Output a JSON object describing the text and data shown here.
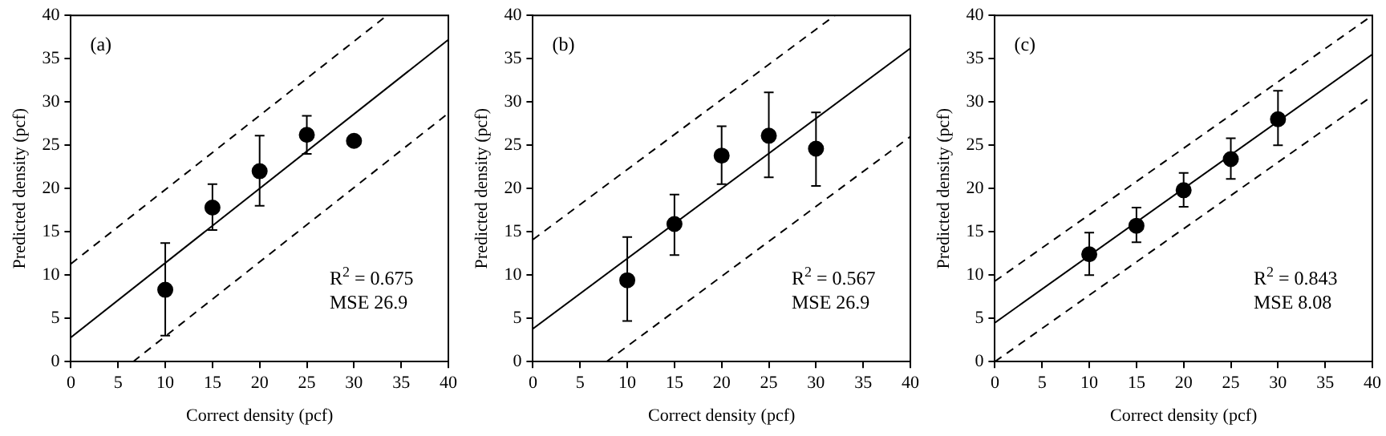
{
  "chart_data": [
    {
      "type": "scatter",
      "xlabel": "Correct density (pcf)",
      "ylabel": "Predicted density (pcf)",
      "xlim": [
        0,
        40
      ],
      "ylim": [
        0,
        40
      ],
      "xticks": [
        0,
        5,
        10,
        15,
        20,
        25,
        30,
        35,
        40
      ],
      "yticks": [
        0,
        5,
        10,
        15,
        20,
        25,
        30,
        35,
        40
      ],
      "grid": false,
      "legend": false,
      "annotations": [
        "(a)",
        "R$^{2}$ = 0.675",
        "MSE 26.9"
      ],
      "series": [
        {
          "type": "scatter",
          "color": "#000000",
          "marker": "circle",
          "x": [
            10,
            15,
            20,
            25,
            30
          ],
          "values": [
            8.3,
            17.8,
            22,
            26.2,
            25.5
          ],
          "errors": [
            [
              3,
              13.7
            ],
            [
              15.2,
              20.5
            ],
            [
              18,
              26.1
            ],
            [
              24,
              28.4
            ],
            null
          ]
        },
        {
          "type": "line",
          "color": "#000000",
          "line_style": "solid",
          "marker": "none",
          "x": [
            0,
            40
          ],
          "values": [
            2.8,
            37.2
          ]
        },
        {
          "type": "line",
          "color": "#000000",
          "line_style": "dashed",
          "marker": "none",
          "x": [
            0,
            33.5
          ],
          "values": [
            11.3,
            40
          ]
        },
        {
          "type": "line",
          "color": "#000000",
          "line_style": "dashed",
          "marker": "none",
          "x": [
            6.6,
            40
          ],
          "values": [
            0,
            28.7
          ]
        }
      ]
    },
    {
      "type": "scatter",
      "xlabel": "Correct density (pcf)",
      "ylabel": "Predicted density (pcf)",
      "xlim": [
        0,
        40
      ],
      "ylim": [
        0,
        40
      ],
      "xticks": [
        0,
        5,
        10,
        15,
        20,
        25,
        30,
        35,
        40
      ],
      "yticks": [
        0,
        5,
        10,
        15,
        20,
        25,
        30,
        35,
        40
      ],
      "grid": false,
      "legend": false,
      "annotations": [
        "(b)",
        "R$^{2}$ = 0.567",
        "MSE 26.9"
      ],
      "series": [
        {
          "type": "scatter",
          "color": "#000000",
          "marker": "circle",
          "x": [
            10,
            15,
            20,
            25,
            30
          ],
          "values": [
            9.4,
            15.9,
            23.8,
            26.1,
            24.6
          ],
          "errors": [
            [
              4.7,
              14.4
            ],
            [
              12.3,
              19.3
            ],
            [
              20.5,
              27.2
            ],
            [
              21.3,
              31.1
            ],
            [
              20.3,
              28.8
            ]
          ]
        },
        {
          "type": "line",
          "color": "#000000",
          "line_style": "solid",
          "marker": "none",
          "x": [
            0,
            40
          ],
          "values": [
            3.8,
            36.2
          ]
        },
        {
          "type": "line",
          "color": "#000000",
          "line_style": "dashed",
          "marker": "none",
          "x": [
            0,
            32
          ],
          "values": [
            14.1,
            40
          ]
        },
        {
          "type": "line",
          "color": "#000000",
          "line_style": "dashed",
          "marker": "none",
          "x": [
            7.8,
            40
          ],
          "values": [
            0,
            26
          ]
        }
      ]
    },
    {
      "type": "scatter",
      "xlabel": "Correct density (pcf)",
      "ylabel": "Predicted density (pcf)",
      "xlim": [
        0,
        40
      ],
      "ylim": [
        0,
        40
      ],
      "xticks": [
        0,
        5,
        10,
        15,
        20,
        25,
        30,
        35,
        40
      ],
      "yticks": [
        0,
        5,
        10,
        15,
        20,
        25,
        30,
        35,
        40
      ],
      "grid": false,
      "legend": false,
      "annotations": [
        "(c)",
        "R$^{2}$ = 0.843",
        "MSE 8.08"
      ],
      "series": [
        {
          "type": "scatter",
          "color": "#000000",
          "marker": "circle",
          "x": [
            10,
            15,
            20,
            25,
            30
          ],
          "values": [
            12.4,
            15.7,
            19.8,
            23.4,
            28
          ],
          "errors": [
            [
              10,
              14.9
            ],
            [
              13.8,
              17.8
            ],
            [
              17.9,
              21.8
            ],
            [
              21.1,
              25.8
            ],
            [
              25,
              31.3
            ]
          ]
        },
        {
          "type": "line",
          "color": "#000000",
          "line_style": "solid",
          "marker": "none",
          "x": [
            0,
            40
          ],
          "values": [
            4.5,
            35.5
          ]
        },
        {
          "type": "line",
          "color": "#000000",
          "line_style": "dashed",
          "marker": "none",
          "x": [
            0,
            40
          ],
          "values": [
            9.3,
            40
          ]
        },
        {
          "type": "line",
          "color": "#000000",
          "line_style": "dashed",
          "marker": "none",
          "x": [
            0,
            40
          ],
          "values": [
            0,
            30.7
          ]
        }
      ]
    }
  ]
}
